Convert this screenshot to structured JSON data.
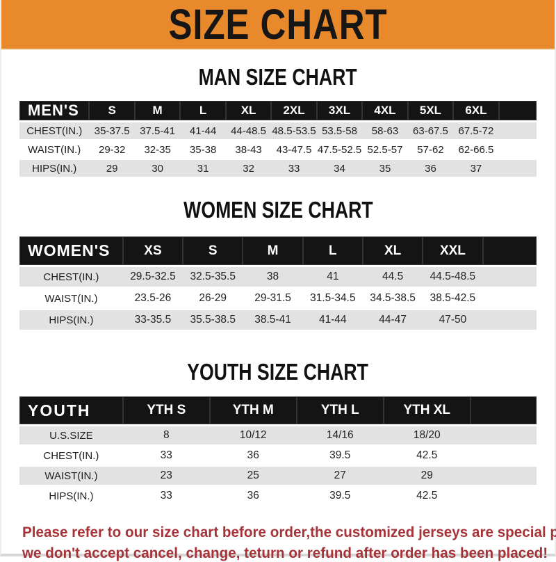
{
  "banner": {
    "title": "SIZE CHART"
  },
  "colors": {
    "banner_orange": "#E8892B",
    "bar_black": "#141414",
    "row_gray": "#E2E2E2",
    "note_red": "#A53338"
  },
  "sections": [
    {
      "heading": "MAN SIZE CHART",
      "table": {
        "header_label": "MEN'S",
        "columns": [
          "S",
          "M",
          "L",
          "XL",
          "2XL",
          "3XL",
          "4XL",
          "5XL",
          "6XL"
        ],
        "rows": [
          {
            "label": "CHEST(IN.)",
            "values": [
              "35-37.5",
              "37.5-41",
              "41-44",
              "44-48.5",
              "48.5-53.5",
              "53.5-58",
              "58-63",
              "63-67.5",
              "67.5-72"
            ]
          },
          {
            "label": "WAIST(IN.)",
            "values": [
              "29-32",
              "32-35",
              "35-38",
              "38-43",
              "43-47.5",
              "47.5-52.5",
              "52.5-57",
              "57-62",
              "62-66.5"
            ]
          },
          {
            "label": "HIPS(IN.)",
            "values": [
              "29",
              "30",
              "31",
              "32",
              "33",
              "34",
              "35",
              "36",
              "37"
            ]
          }
        ]
      }
    },
    {
      "heading": "WOMEN SIZE CHART",
      "table": {
        "header_label": "WOMEN'S",
        "columns": [
          "XS",
          "S",
          "M",
          "L",
          "XL",
          "XXL"
        ],
        "rows": [
          {
            "label": "CHEST(IN.)",
            "values": [
              "29.5-32.5",
              "32.5-35.5",
              "38",
              "41",
              "44.5",
              "44.5-48.5"
            ]
          },
          {
            "label": "WAIST(IN.)",
            "values": [
              "23.5-26",
              "26-29",
              "29-31.5",
              "31.5-34.5",
              "34.5-38.5",
              "38.5-42.5"
            ]
          },
          {
            "label": "HIPS(IN.)",
            "values": [
              "33-35.5",
              "35.5-38.5",
              "38.5-41",
              "41-44",
              "44-47",
              "47-50"
            ]
          }
        ]
      }
    },
    {
      "heading": "YOUTH SIZE CHART",
      "table": {
        "header_label": "YOUTH",
        "columns": [
          "YTH S",
          "YTH M",
          "YTH L",
          "YTH XL"
        ],
        "rows": [
          {
            "label": "U.S.SIZE",
            "values": [
              "8",
              "10/12",
              "14/16",
              "18/20"
            ]
          },
          {
            "label": "CHEST(IN.)",
            "values": [
              "33",
              "36",
              "39.5",
              "42.5"
            ]
          },
          {
            "label": "WAIST(IN.)",
            "values": [
              "23",
              "25",
              "27",
              "29"
            ]
          },
          {
            "label": "HIPS(IN.)",
            "values": [
              "33",
              "36",
              "39.5",
              "42.5"
            ]
          }
        ]
      }
    }
  ],
  "footer": {
    "lines": [
      "Please refer to our size chart before order,the customized jerseys are special products,",
      "we don't accept cancel, change, teturn or refund after order has been placed!"
    ]
  }
}
